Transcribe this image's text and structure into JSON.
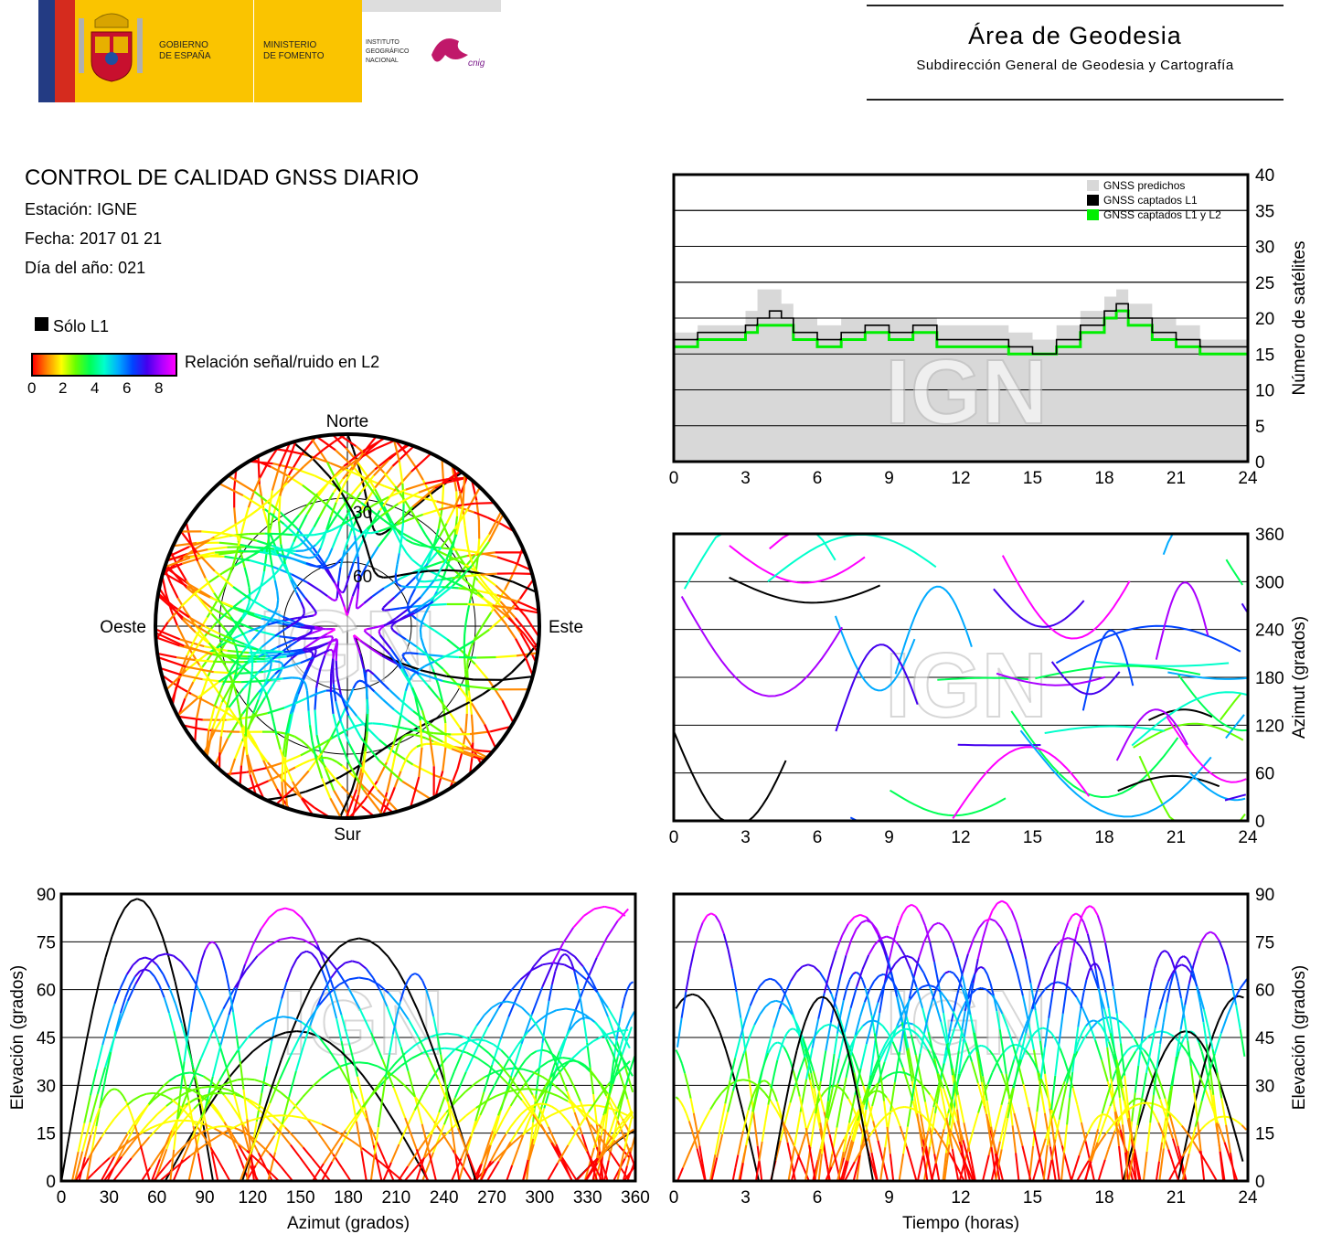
{
  "header": {
    "logo_gov_line1": "GOBIERNO",
    "logo_gov_line2": "DE ESPAÑA",
    "logo_min_line1": "MINISTERIO",
    "logo_min_line2": "DE FOMENTO",
    "logo_ign_line1": "INSTITUTO",
    "logo_ign_line2": "GEOGRÁFICO",
    "logo_ign_line3": "NACIONAL",
    "logo_cnig": "cnig",
    "area_title": "Área de Geodesia",
    "area_subtitle": "Subdirección General de Geodesia y Cartografía"
  },
  "info": {
    "title": "CONTROL DE CALIDAD GNSS DIARIO",
    "station": "Estación: IGNE",
    "date": "Fecha: 2017 01 21",
    "doy": "Día del año: 021"
  },
  "legend": {
    "l1_only": "Sólo L1",
    "snr_label": "Relación señal/ruido en L2",
    "snr_ticks": [
      "0",
      "2",
      "4",
      "6",
      "8"
    ]
  },
  "colors": {
    "predicted": "#d8d8d8",
    "l1": "#000000",
    "l1l2": "#00ee00",
    "snr_scale": [
      "#ff0000",
      "#ff8800",
      "#ffff00",
      "#66ff00",
      "#00ff55",
      "#00ffcc",
      "#00aaff",
      "#0044ff",
      "#4400ee",
      "#aa00ff",
      "#ff00ff"
    ]
  },
  "chart_data": [
    {
      "id": "satellite_count",
      "type": "area",
      "ylabel": "Número de satélites",
      "xlim": [
        0,
        24
      ],
      "ylim": [
        0,
        40
      ],
      "x_ticks": [
        "0",
        "3",
        "6",
        "9",
        "12",
        "15",
        "18",
        "21",
        "24"
      ],
      "y_ticks": [
        "0",
        "5",
        "10",
        "15",
        "20",
        "25",
        "30",
        "35",
        "40"
      ],
      "legend_position": "top-right",
      "watermark": "IGN",
      "x": [
        0,
        1,
        2,
        3,
        3.5,
        4,
        4.5,
        5,
        6,
        7,
        8,
        9,
        10,
        11,
        12,
        13,
        14,
        15,
        16,
        17,
        18,
        18.5,
        19,
        20,
        21,
        22,
        23,
        24
      ],
      "series": [
        {
          "name": "GNSS predichos",
          "values": [
            18,
            19,
            19,
            21,
            24,
            24,
            22,
            20,
            19,
            20,
            20,
            20,
            20,
            19,
            19,
            19,
            18,
            17,
            19,
            21,
            23,
            24,
            22,
            20,
            19,
            17,
            17,
            17
          ]
        },
        {
          "name": "GNSS captados L1",
          "values": [
            17,
            18,
            18,
            19,
            20,
            21,
            20,
            18,
            17,
            18,
            19,
            18,
            19,
            17,
            17,
            17,
            16,
            15,
            17,
            19,
            21,
            22,
            20,
            18,
            17,
            16,
            16,
            16
          ]
        },
        {
          "name": "GNSS captados L1 y L2",
          "values": [
            16,
            17,
            17,
            18,
            19,
            19,
            19,
            17,
            16,
            17,
            18,
            17,
            18,
            16,
            16,
            16,
            15,
            15,
            16,
            18,
            20,
            21,
            19,
            17,
            16,
            15,
            15,
            15
          ]
        }
      ]
    },
    {
      "id": "azimuth_time",
      "type": "scatter",
      "ylabel": "Azimut (grados)",
      "xlim": [
        0,
        24
      ],
      "ylim": [
        0,
        360
      ],
      "x_ticks": [
        "0",
        "3",
        "6",
        "9",
        "12",
        "15",
        "18",
        "21",
        "24"
      ],
      "y_ticks": [
        "0",
        "60",
        "120",
        "180",
        "240",
        "300",
        "360"
      ],
      "watermark": "IGN"
    },
    {
      "id": "skyplot",
      "type": "scatter",
      "direction_labels": {
        "north": "Norte",
        "south": "Sur",
        "west": "Oeste",
        "east": "Este"
      },
      "ring_labels": [
        "30",
        "60"
      ],
      "watermark": "IGN"
    },
    {
      "id": "elevation_azimuth",
      "type": "scatter",
      "xlabel": "Azimut (grados)",
      "ylabel": "Elevación (grados)",
      "xlim": [
        0,
        360
      ],
      "ylim": [
        0,
        90
      ],
      "x_ticks": [
        "0",
        "30",
        "60",
        "90",
        "120",
        "150",
        "180",
        "210",
        "240",
        "270",
        "300",
        "330",
        "360"
      ],
      "y_ticks": [
        "0",
        "15",
        "30",
        "45",
        "60",
        "75",
        "90"
      ],
      "watermark": "IGN"
    },
    {
      "id": "elevation_time",
      "type": "line",
      "xlabel": "Tiempo (horas)",
      "ylabel": "Elevación (grados)",
      "xlim": [
        0,
        24
      ],
      "ylim": [
        0,
        90
      ],
      "x_ticks": [
        "0",
        "3",
        "6",
        "9",
        "12",
        "15",
        "18",
        "21",
        "24"
      ],
      "y_ticks": [
        "0",
        "15",
        "30",
        "45",
        "60",
        "75",
        "90"
      ],
      "watermark": "IGN"
    }
  ]
}
